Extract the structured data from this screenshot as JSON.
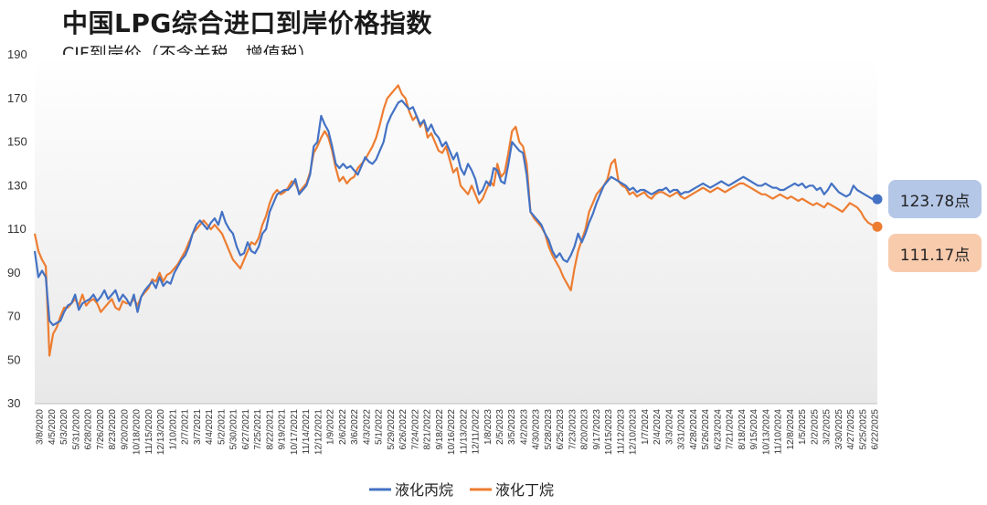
{
  "header": {
    "title": "中国LPG综合进口到岸价格指数",
    "subtitle": "CIF到岸价（不含关税、增值税）"
  },
  "badges": {
    "propane": "123.78点",
    "butane": "111.17点"
  },
  "colors": {
    "propane": "#4472C4",
    "butane": "#ED7D31",
    "propane_badge": "#B4C7E7",
    "butane_badge": "#F8CBAD"
  },
  "chart_data": {
    "type": "line",
    "title": "中国LPG综合进口到岸价格指数",
    "subtitle": "CIF到岸价（不含关税、增值税）",
    "ylim": [
      30,
      190
    ],
    "yticks": [
      30,
      50,
      70,
      90,
      110,
      130,
      150,
      170,
      190
    ],
    "grid": false,
    "legend_position": "bottom",
    "x_tick_labels": [
      "3/8/2020",
      "4/5/2020",
      "5/3/2020",
      "5/31/2020",
      "6/28/2020",
      "7/26/2020",
      "8/23/2020",
      "9/20/2020",
      "10/18/2020",
      "11/15/2020",
      "12/13/2020",
      "1/10/2021",
      "2/7/2021",
      "3/7/2021",
      "4/4/2021",
      "5/2/2021",
      "5/30/2021",
      "6/27/2021",
      "7/25/2021",
      "8/22/2021",
      "9/19/2021",
      "10/17/2021",
      "11/14/2021",
      "12/12/2021",
      "1/9/2022",
      "2/6/2022",
      "3/6/2022",
      "4/3/2022",
      "5/1/2022",
      "5/29/2022",
      "6/26/2022",
      "7/24/2022",
      "8/21/2022",
      "9/18/2022",
      "10/16/2022",
      "11/13/2022",
      "12/11/2022",
      "1/8/2023",
      "2/5/2023",
      "3/5/2023",
      "4/2/2023",
      "4/30/2023",
      "5/28/2023",
      "6/25/2023",
      "7/23/2023",
      "8/20/2023",
      "9/17/2023",
      "10/15/2023",
      "11/12/2023",
      "12/10/2023",
      "1/7/2024",
      "2/4/2024",
      "3/3/2024",
      "3/31/2024",
      "4/28/2024",
      "5/26/2024",
      "6/23/2024",
      "7/21/2024",
      "8/18/2024",
      "9/15/2024",
      "10/13/2024",
      "11/10/2024",
      "12/8/2024",
      "1/5/2025",
      "2/2/2025",
      "3/2/2025",
      "3/30/2025",
      "4/27/2025",
      "5/25/2025",
      "6/22/2025"
    ],
    "series": [
      {
        "name": "液化丙烷",
        "end_label": "123.78点",
        "values": [
          100,
          88,
          91,
          88,
          68,
          66,
          67,
          68,
          72,
          75,
          76,
          80,
          73,
          76,
          77,
          78,
          80,
          77,
          79,
          82,
          78,
          80,
          82,
          77,
          80,
          78,
          75,
          80,
          72,
          79,
          82,
          84,
          86,
          83,
          88,
          84,
          86,
          85,
          90,
          93,
          96,
          98,
          102,
          108,
          112,
          114,
          112,
          110,
          113,
          115,
          112,
          118,
          113,
          110,
          108,
          102,
          98,
          99,
          104,
          100,
          99,
          102,
          108,
          110,
          118,
          122,
          126,
          127,
          128,
          128,
          130,
          133,
          126,
          128,
          130,
          135,
          148,
          150,
          162,
          158,
          155,
          148,
          140,
          138,
          140,
          138,
          139,
          137,
          135,
          139,
          143,
          141,
          140,
          142,
          146,
          150,
          158,
          162,
          165,
          168,
          169,
          167,
          165,
          166,
          162,
          158,
          160,
          155,
          158,
          154,
          152,
          148,
          150,
          146,
          142,
          145,
          138,
          135,
          140,
          137,
          133,
          126,
          128,
          132,
          130,
          138,
          137,
          132,
          131,
          140,
          150,
          148,
          146,
          145,
          135,
          118,
          116,
          114,
          112,
          108,
          105,
          100,
          97,
          99,
          96,
          95,
          98,
          102,
          108,
          104,
          108,
          113,
          117,
          122,
          126,
          130,
          132,
          134,
          133,
          132,
          131,
          130,
          128,
          129,
          127,
          128,
          128,
          127,
          126,
          127,
          128,
          128,
          129,
          127,
          128,
          128,
          126,
          127,
          127,
          128,
          129,
          130,
          131,
          130,
          129,
          130,
          131,
          132,
          131,
          130,
          131,
          132,
          133,
          134,
          133,
          132,
          131,
          130,
          130,
          131,
          130,
          129,
          129,
          128,
          128,
          129,
          130,
          131,
          130,
          131,
          129,
          130,
          130,
          128,
          129,
          126,
          128,
          131,
          129,
          127,
          126,
          125,
          126,
          130,
          128,
          127,
          126,
          125,
          124,
          123.78
        ]
      },
      {
        "name": "液化丁烷",
        "end_label": "111.17点",
        "values": [
          108,
          100,
          96,
          93,
          52,
          62,
          65,
          70,
          74,
          74,
          76,
          78,
          75,
          80,
          75,
          77,
          78,
          76,
          72,
          74,
          76,
          78,
          74,
          73,
          77,
          76,
          76,
          78,
          75,
          79,
          81,
          83,
          87,
          86,
          90,
          86,
          89,
          90,
          92,
          94,
          97,
          100,
          104,
          108,
          110,
          112,
          114,
          112,
          110,
          112,
          110,
          108,
          104,
          100,
          96,
          94,
          92,
          96,
          100,
          104,
          103,
          106,
          112,
          116,
          122,
          126,
          128,
          126,
          127,
          129,
          132,
          131,
          127,
          129,
          131,
          136,
          145,
          148,
          152,
          155,
          152,
          146,
          138,
          132,
          134,
          131,
          133,
          134,
          138,
          140,
          142,
          145,
          148,
          152,
          158,
          165,
          170,
          172,
          174,
          176,
          172,
          170,
          164,
          160,
          162,
          157,
          160,
          152,
          154,
          150,
          146,
          145,
          148,
          142,
          136,
          138,
          130,
          128,
          126,
          130,
          126,
          122,
          124,
          128,
          132,
          130,
          140,
          134,
          136,
          145,
          155,
          157,
          150,
          148,
          140,
          118,
          115,
          113,
          111,
          108,
          102,
          98,
          95,
          92,
          88,
          85,
          82,
          92,
          100,
          105,
          110,
          118,
          122,
          126,
          128,
          130,
          133,
          140,
          142,
          132,
          130,
          129,
          126,
          127,
          125,
          126,
          127,
          125,
          124,
          126,
          127,
          127,
          126,
          125,
          126,
          127,
          125,
          124,
          125,
          126,
          127,
          128,
          129,
          128,
          127,
          128,
          129,
          128,
          127,
          128,
          129,
          130,
          131,
          131,
          130,
          129,
          128,
          127,
          126,
          126,
          125,
          124,
          125,
          126,
          125,
          124,
          125,
          124,
          123,
          124,
          123,
          122,
          121,
          122,
          121,
          120,
          122,
          121,
          120,
          119,
          118,
          120,
          122,
          121,
          120,
          118,
          115,
          113,
          112,
          111.17
        ]
      }
    ]
  }
}
